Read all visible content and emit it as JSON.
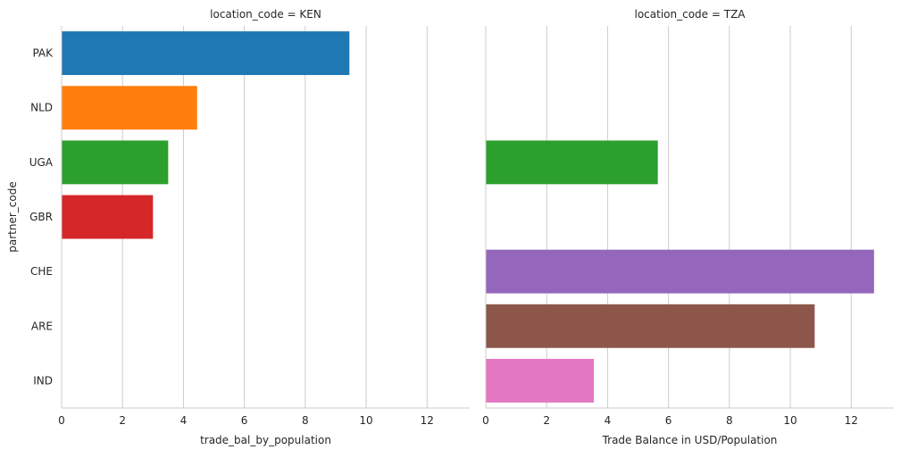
{
  "chart_data": {
    "type": "bar",
    "orientation": "horizontal",
    "categories": [
      "PAK",
      "NLD",
      "UGA",
      "GBR",
      "CHE",
      "ARE",
      "IND"
    ],
    "category_colors": {
      "PAK": "#1f77b4",
      "NLD": "#ff7f0e",
      "UGA": "#2ca02c",
      "GBR": "#d62728",
      "CHE": "#9467bd",
      "ARE": "#8c564b",
      "IND": "#e377c2"
    },
    "ylabel": "partner_code",
    "xlim": [
      0,
      13.4
    ],
    "xticks": [
      0,
      2,
      4,
      6,
      8,
      10,
      12
    ],
    "grid": "vertical",
    "panels": [
      {
        "title": "location_code = KEN",
        "xlabel": "trade_bal_by_population",
        "values": [
          9.45,
          4.45,
          3.5,
          3.0,
          null,
          null,
          null
        ]
      },
      {
        "title": "location_code = TZA",
        "xlabel": "Trade Balance in USD/Population",
        "values": [
          null,
          null,
          5.65,
          null,
          12.75,
          10.8,
          3.55
        ]
      }
    ]
  }
}
